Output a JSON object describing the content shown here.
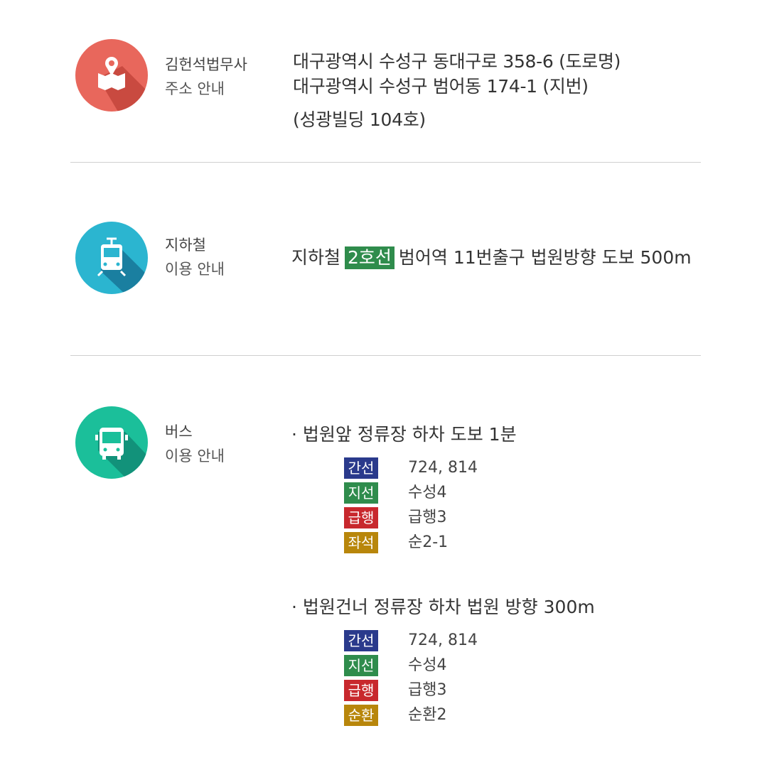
{
  "address": {
    "label_line1": "김헌석법무사",
    "label_line2": "주소 안내",
    "lines": [
      "대구광역시 수성구 동대구로 358-6 (도로명)",
      "대구광역시 수성구 범어동 174-1 (지번)",
      "(성광빌딩 104호)"
    ],
    "icon": "map-pin-icon",
    "color": "#e8675c"
  },
  "subway": {
    "label_line1": "지하철",
    "label_line2": "이용 안내",
    "prefix": "지하철",
    "line_badge": "2호선",
    "line_color": "#2f8c4c",
    "suffix": "범어역 11번출구 법원방향 도보 500m",
    "icon": "tram-icon",
    "color": "#2bb5d0"
  },
  "bus": {
    "label_line1": "버스",
    "label_line2": "이용 안내",
    "icon": "bus-icon",
    "color": "#1bbf9a",
    "stops": [
      {
        "title": "· 법원앞 정류장 하차 도보 1분",
        "routes": [
          {
            "type": "간선",
            "color": "#2a3a8c",
            "numbers": "724, 814"
          },
          {
            "type": "지선",
            "color": "#2f8c4c",
            "numbers": "수성4"
          },
          {
            "type": "급행",
            "color": "#c8282d",
            "numbers": "급행3"
          },
          {
            "type": "좌석",
            "color": "#b8860b",
            "numbers": "순2-1"
          }
        ]
      },
      {
        "title": "· 법원건너 정류장 하차 법원 방향 300m",
        "routes": [
          {
            "type": "간선",
            "color": "#2a3a8c",
            "numbers": "724, 814"
          },
          {
            "type": "지선",
            "color": "#2f8c4c",
            "numbers": "수성4"
          },
          {
            "type": "급행",
            "color": "#c8282d",
            "numbers": "급행3"
          },
          {
            "type": "순환",
            "color": "#b8860b",
            "numbers": "순환2"
          }
        ]
      }
    ]
  }
}
